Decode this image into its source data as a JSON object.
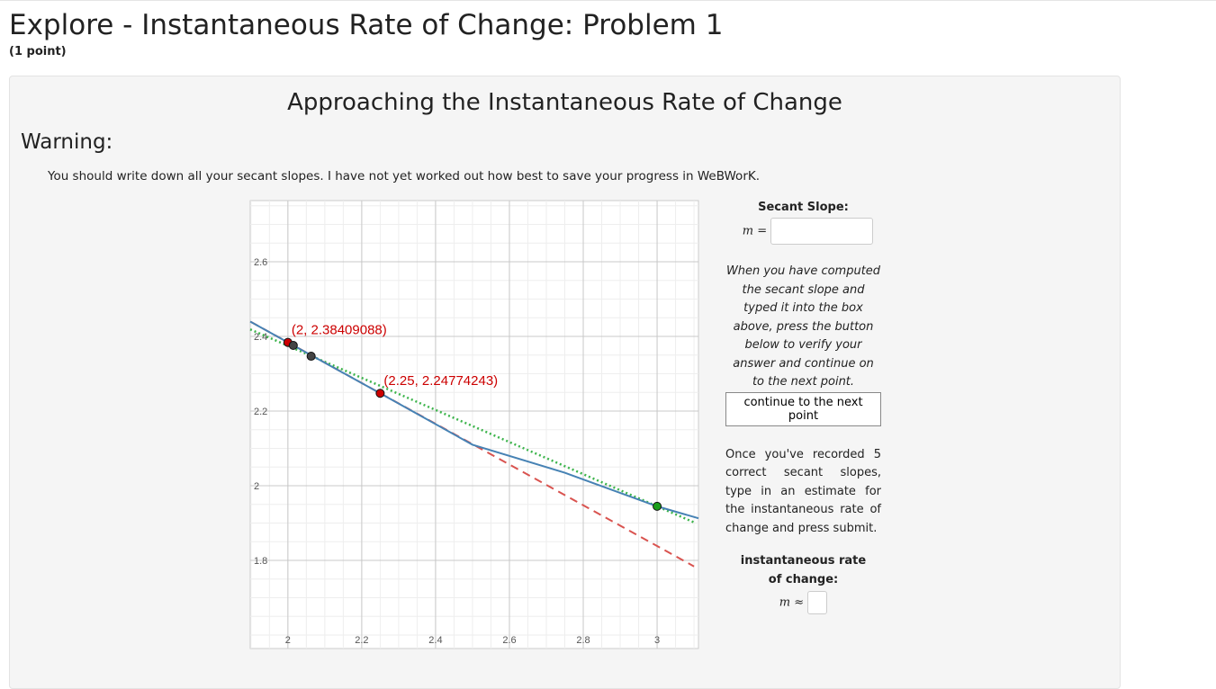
{
  "header": {
    "title": "Explore - Instantaneous Rate of Change: Problem 1",
    "points": "(1 point)"
  },
  "panel": {
    "heading": "Approaching the Instantaneous Rate of Change",
    "warning_title": "Warning:",
    "warning_text": "You should write down all your secant slopes. I have not yet worked out how best to save your progress in WeBWorK."
  },
  "graph": {
    "xlim": [
      1.898,
      3.112
    ],
    "ylim": [
      1.564,
      2.764
    ],
    "xticks": [
      2,
      2.2,
      2.4,
      2.6,
      2.8,
      3
    ],
    "yticks": [
      1.8,
      2,
      2.2,
      2.4,
      2.6
    ],
    "curve": {
      "color": "#4682b4",
      "x": [
        1.898,
        2,
        2.25,
        2.5,
        2.75,
        3,
        3.112
      ],
      "y": [
        2.44,
        2.38409088,
        2.24774243,
        2.11,
        2.035,
        1.945,
        1.913
      ]
    },
    "secant": {
      "color": "#d9534f",
      "x": [
        1.9,
        3.1
      ],
      "y": [
        2.439,
        1.784
      ]
    },
    "tangent": {
      "color": "#3cb44b",
      "x": [
        1.898,
        3.1
      ],
      "y": [
        2.419,
        1.902
      ]
    },
    "points": [
      {
        "x": 2,
        "y": 2.38409088,
        "color": "#cc0000",
        "label": "(2, 2.38409088)"
      },
      {
        "x": 2.25,
        "y": 2.24774243,
        "color": "#cc0000",
        "label": "(2.25, 2.24774243)"
      },
      {
        "x": 2.0146,
        "y": 2.376,
        "color": "#444444"
      },
      {
        "x": 2.063,
        "y": 2.347,
        "color": "#444444"
      },
      {
        "x": 3,
        "y": 1.945,
        "color": "#1a9e1a"
      }
    ]
  },
  "sidebar": {
    "secant_label": "Secant Slope:",
    "m_equals": "m =",
    "instructions": "When you have computed the secant slope and typed it into the box above, press the button below to verify your answer and continue on to the next point.",
    "button": "continue to the next point",
    "once_text": "Once you've recorded 5 correct secant slopes, type in an estimate for the instantaneous rate of change and press submit.",
    "estimate_label": "instantaneous rate of change:",
    "m_approx": "m ≈"
  }
}
